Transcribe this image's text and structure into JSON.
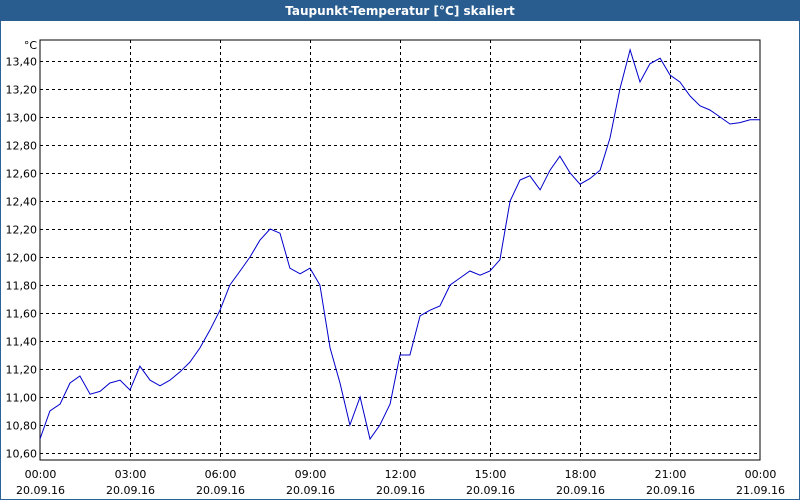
{
  "title": "Taupunkt-Temperatur [°C] skaliert",
  "chart_data": {
    "type": "line",
    "title": "Taupunkt-Temperatur [°C] skaliert",
    "unit": "°C",
    "ylim": [
      10.55,
      13.55
    ],
    "grid": true,
    "line_color": "#0000cc",
    "y_ticks": [
      "10,60",
      "10,80",
      "11,00",
      "11,20",
      "11,40",
      "11,60",
      "11,80",
      "12,00",
      "12,20",
      "12,40",
      "12,60",
      "12,80",
      "13,00",
      "13,20",
      "13,40"
    ],
    "x_ticks": [
      {
        "time": "00:00",
        "date": "20.09.16"
      },
      {
        "time": "03:00",
        "date": "20.09.16"
      },
      {
        "time": "06:00",
        "date": "20.09.16"
      },
      {
        "time": "09:00",
        "date": "20.09.16"
      },
      {
        "time": "12:00",
        "date": "20.09.16"
      },
      {
        "time": "15:00",
        "date": "20.09.16"
      },
      {
        "time": "18:00",
        "date": "20.09.16"
      },
      {
        "time": "21:00",
        "date": "20.09.16"
      },
      {
        "time": "00:00",
        "date": "21.09.16"
      }
    ],
    "series": [
      {
        "x_hours": [
          0,
          0.33,
          0.67,
          1.0,
          1.33,
          1.67,
          2.0,
          2.33,
          2.67,
          3.0,
          3.33,
          3.67,
          4.0,
          4.33,
          4.67,
          5.0,
          5.33,
          5.67,
          6.0,
          6.33,
          6.67,
          7.0,
          7.33,
          7.67,
          8.0,
          8.33,
          8.67,
          9.0,
          9.33,
          9.67,
          10.0,
          10.33,
          10.67,
          11.0,
          11.33,
          11.67,
          12.0,
          12.33,
          12.67,
          13.0,
          13.33,
          13.67,
          14.0,
          14.33,
          14.67,
          15.0,
          15.33,
          15.67,
          16.0,
          16.33,
          16.67,
          17.0,
          17.33,
          17.67,
          18.0,
          18.33,
          18.67,
          19.0,
          19.33,
          19.67,
          20.0,
          20.33,
          20.67,
          21.0,
          21.33,
          21.67,
          22.0,
          22.33,
          22.67,
          23.0,
          23.33,
          23.67,
          24.0
        ],
        "values": [
          10.7,
          10.9,
          10.95,
          11.1,
          11.15,
          11.02,
          11.04,
          11.1,
          11.12,
          11.05,
          11.22,
          11.12,
          11.08,
          11.12,
          11.18,
          11.25,
          11.35,
          11.48,
          11.62,
          11.8,
          11.9,
          12.0,
          12.12,
          12.2,
          12.17,
          11.92,
          11.88,
          11.92,
          11.8,
          11.35,
          11.1,
          10.8,
          11.0,
          10.7,
          10.8,
          10.95,
          11.3,
          11.3,
          11.58,
          11.62,
          11.65,
          11.8,
          11.85,
          11.9,
          11.87,
          11.9,
          11.98,
          12.4,
          12.55,
          12.58,
          12.48,
          12.62,
          12.72,
          12.6,
          12.52,
          12.56,
          12.62,
          12.85,
          13.2,
          13.48,
          13.25,
          13.38,
          13.42,
          13.3,
          13.25,
          13.15,
          13.08,
          13.05,
          13.0,
          12.95,
          12.96,
          12.98,
          12.98
        ]
      }
    ]
  }
}
